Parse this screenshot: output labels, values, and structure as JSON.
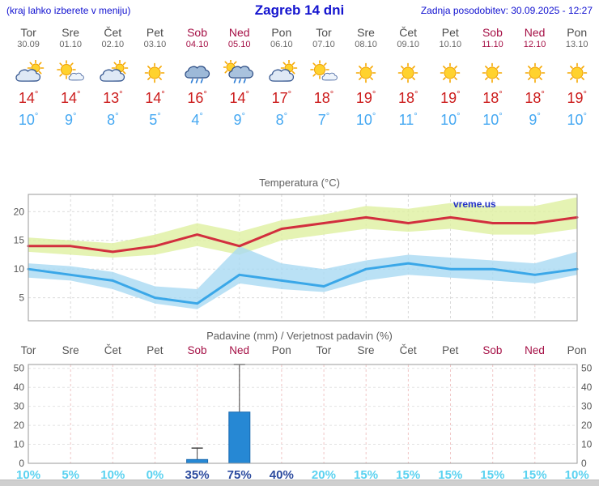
{
  "page": {
    "hint": "(kraj lahko izberete v meniju)",
    "title": "Zagreb 14 dni",
    "last_update": "Zadnja posodobitev: 30.09.2025 - 12:27",
    "degree_symbol": "°",
    "watermark": "vreme.us"
  },
  "forecast_days": [
    {
      "day": "Tor",
      "date": "30.09",
      "weekend": false,
      "icon": "cloud-sun",
      "tmax": "14",
      "tmin": "10"
    },
    {
      "day": "Sre",
      "date": "01.10",
      "weekend": false,
      "icon": "sun-cloud",
      "tmax": "14",
      "tmin": "9"
    },
    {
      "day": "Čet",
      "date": "02.10",
      "weekend": false,
      "icon": "cloud-sun",
      "tmax": "13",
      "tmin": "8"
    },
    {
      "day": "Pet",
      "date": "03.10",
      "weekend": false,
      "icon": "sunny",
      "tmax": "14",
      "tmin": "5"
    },
    {
      "day": "Sob",
      "date": "04.10",
      "weekend": true,
      "icon": "rain",
      "tmax": "16",
      "tmin": "4"
    },
    {
      "day": "Ned",
      "date": "05.10",
      "weekend": true,
      "icon": "rain-sun",
      "tmax": "14",
      "tmin": "9"
    },
    {
      "day": "Pon",
      "date": "06.10",
      "weekend": false,
      "icon": "cloud-sun",
      "tmax": "17",
      "tmin": "8"
    },
    {
      "day": "Tor",
      "date": "07.10",
      "weekend": false,
      "icon": "sun-cloud",
      "tmax": "18",
      "tmin": "7"
    },
    {
      "day": "Sre",
      "date": "08.10",
      "weekend": false,
      "icon": "sunny",
      "tmax": "19",
      "tmin": "10"
    },
    {
      "day": "Čet",
      "date": "09.10",
      "weekend": false,
      "icon": "sunny",
      "tmax": "18",
      "tmin": "11"
    },
    {
      "day": "Pet",
      "date": "10.10",
      "weekend": false,
      "icon": "sunny",
      "tmax": "19",
      "tmin": "10"
    },
    {
      "day": "Sob",
      "date": "11.10",
      "weekend": true,
      "icon": "sunny",
      "tmax": "18",
      "tmin": "10"
    },
    {
      "day": "Ned",
      "date": "12.10",
      "weekend": true,
      "icon": "sunny",
      "tmax": "18",
      "tmin": "9"
    },
    {
      "day": "Pon",
      "date": "13.10",
      "weekend": false,
      "icon": "sunny",
      "tmax": "19",
      "tmin": "10"
    }
  ],
  "chart_data": [
    {
      "type": "line",
      "title": "Temperatura (°C)",
      "x_labels": [
        "Tor 30.09",
        "Sre 01.10",
        "Čet 02.10",
        "Pet 03.10",
        "Sob 04.10",
        "Ned 05.10",
        "Pon 06.10",
        "Tor 07.10",
        "Sre 08.10",
        "Čet 09.10",
        "Pet 10.10",
        "Sob 11.10",
        "Ned 12.10",
        "Pon 13.10"
      ],
      "ylim": [
        1,
        23
      ],
      "yticks": [
        5,
        10,
        15,
        20
      ],
      "series": [
        {
          "name": "max-temp",
          "color": "#d22f3e",
          "values": [
            14,
            14,
            13,
            14,
            16,
            14,
            17,
            18,
            19,
            18,
            19,
            18,
            18,
            19
          ]
        },
        {
          "name": "min-temp",
          "color": "#3aa7e8",
          "values": [
            10,
            9,
            8,
            5,
            4,
            9,
            8,
            7,
            10,
            11,
            10,
            10,
            9,
            10
          ]
        }
      ],
      "bands": [
        {
          "name": "max-temp-range",
          "color": "#dff0a0",
          "upper": [
            15.5,
            15,
            14.5,
            16,
            18,
            16.5,
            18.5,
            19.5,
            21,
            20.5,
            21.5,
            21,
            21,
            22.5
          ],
          "lower": [
            13,
            12.5,
            12,
            12.5,
            14,
            12.5,
            15,
            16,
            17,
            16.5,
            17,
            16,
            16,
            17
          ]
        },
        {
          "name": "min-temp-range",
          "color": "#a9d9f2",
          "upper": [
            11,
            10.5,
            9.5,
            7,
            6.5,
            14,
            11,
            10,
            11.5,
            12.5,
            12,
            11.5,
            11,
            13
          ],
          "lower": [
            8.5,
            8,
            6.5,
            4,
            3,
            7.5,
            6.5,
            6,
            8,
            9,
            8.5,
            8,
            7.5,
            9
          ]
        }
      ],
      "watermark": "vreme.us",
      "grid": true,
      "legend": "none"
    },
    {
      "type": "bar",
      "title": "Padavine (mm) / Verjetnost padavin (%)",
      "categories": [
        "Tor",
        "Sre",
        "Čet",
        "Pet",
        "Sob",
        "Ned",
        "Pon",
        "Tor",
        "Sre",
        "Čet",
        "Pet",
        "Sob",
        "Ned",
        "Pon"
      ],
      "weekend_flags": [
        false,
        false,
        false,
        false,
        true,
        true,
        false,
        false,
        false,
        false,
        false,
        true,
        true,
        false
      ],
      "values": [
        0,
        0,
        0,
        0,
        2,
        27,
        0,
        0,
        0,
        0,
        0,
        0,
        0,
        0
      ],
      "range_max": [
        0,
        0,
        0,
        0,
        8,
        52,
        0,
        0,
        0,
        0,
        0,
        0,
        0,
        0
      ],
      "probabilities": [
        {
          "label": "10%",
          "high": false
        },
        {
          "label": "5%",
          "high": false
        },
        {
          "label": "10%",
          "high": false
        },
        {
          "label": "0%",
          "high": false
        },
        {
          "label": "35%",
          "high": true
        },
        {
          "label": "75%",
          "high": true
        },
        {
          "label": "40%",
          "high": true
        },
        {
          "label": "20%",
          "high": false
        },
        {
          "label": "15%",
          "high": false
        },
        {
          "label": "15%",
          "high": false
        },
        {
          "label": "15%",
          "high": false
        },
        {
          "label": "15%",
          "high": false
        },
        {
          "label": "15%",
          "high": false
        },
        {
          "label": "10%",
          "high": false
        }
      ],
      "ylim": [
        0,
        52
      ],
      "yticks": [
        0,
        10,
        20,
        30,
        40,
        50
      ],
      "bar_color": "#2688d4",
      "grid": true,
      "legend": "none"
    }
  ]
}
